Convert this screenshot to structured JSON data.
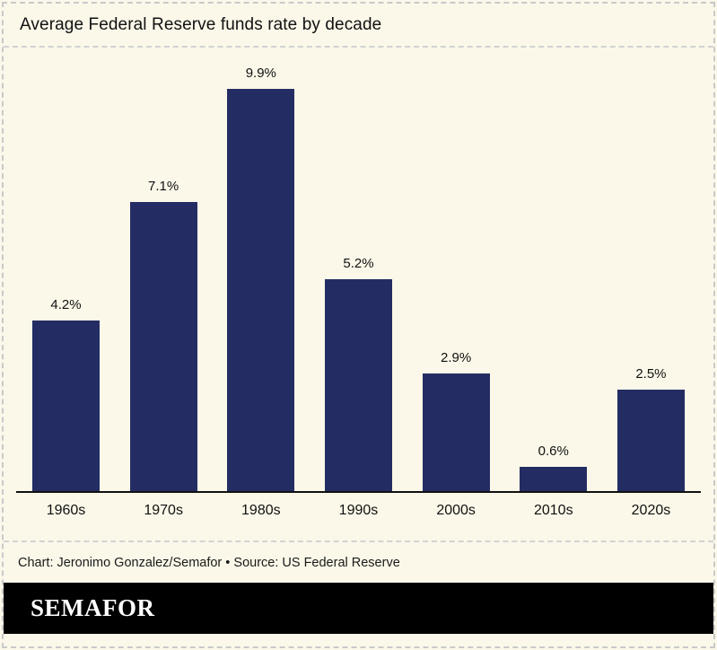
{
  "title": "Average Federal Reserve funds rate by decade",
  "caption": "Chart: Jeronimo Gonzalez/Semafor • Source: US Federal Reserve",
  "brand": {
    "logo_text": "SEMAFOR"
  },
  "colors": {
    "background": "#fbf8e9",
    "bar": "#242d63",
    "axis": "#111111",
    "dashed_border": "#c9c9c9",
    "footer_bg": "#000000",
    "logo_text_color": "#ffffff"
  },
  "chart_data": {
    "type": "bar",
    "categories": [
      "1960s",
      "1970s",
      "1980s",
      "1990s",
      "2000s",
      "2010s",
      "2020s"
    ],
    "values": [
      4.2,
      7.1,
      9.9,
      5.2,
      2.9,
      0.6,
      2.5
    ],
    "value_labels": [
      "4.2%",
      "7.1%",
      "9.9%",
      "5.2%",
      "2.9%",
      "0.6%",
      "2.5%"
    ],
    "title": "Average Federal Reserve funds rate by decade",
    "xlabel": "",
    "ylabel": "",
    "ylim": [
      0,
      10.5
    ],
    "grid": false,
    "legend": false,
    "data_labels_position": "above-bars"
  }
}
